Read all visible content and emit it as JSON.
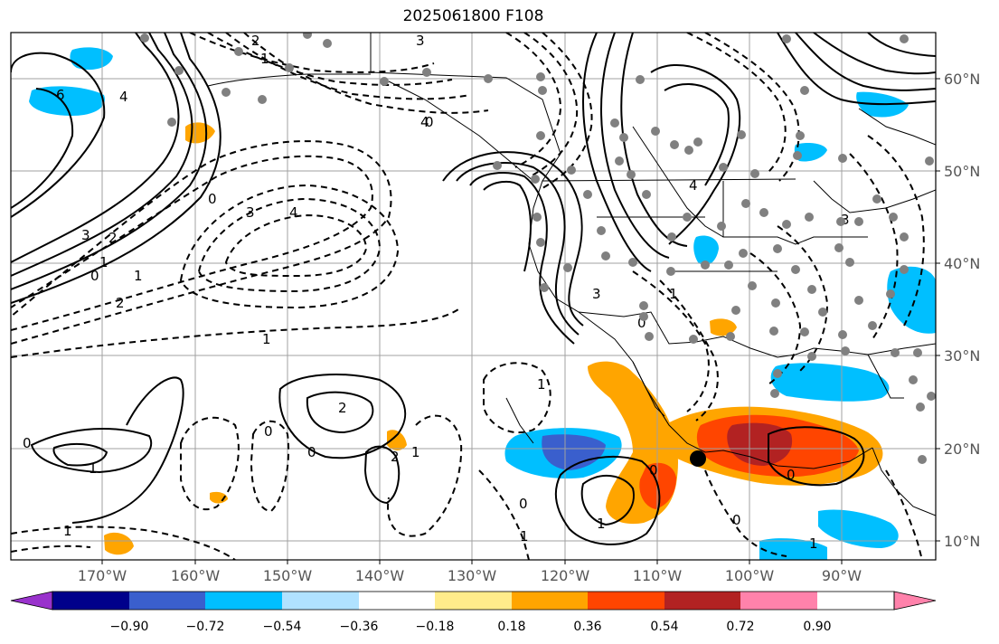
{
  "title": "2025061800 F108",
  "lat_labels": [
    "60°N",
    "50°N",
    "40°N",
    "30°N",
    "20°N",
    "10°N"
  ],
  "lon_labels": [
    "170°W",
    "160°W",
    "150°W",
    "140°W",
    "130°W",
    "120°W",
    "110°W",
    "100°W",
    "90°W"
  ],
  "colorbar": {
    "ticks": [
      "−0.90",
      "−0.72",
      "−0.54",
      "−0.36",
      "−0.18",
      "0.18",
      "0.36",
      "0.54",
      "0.72",
      "0.90"
    ],
    "colors": [
      "#9932cc",
      "#00008b",
      "#3a5fcd",
      "#00bfff",
      "#b0e2ff",
      "#ffffff",
      "#ffec8b",
      "#ffa500",
      "#ff4500",
      "#b22222",
      "#ff82ab"
    ]
  },
  "contour_labels": [
    "6",
    "4",
    "3",
    "2",
    "1",
    "0",
    "1",
    "2",
    "3",
    "4",
    "2",
    "1",
    "0",
    "1",
    "2",
    "1",
    "0",
    "3",
    "4",
    "0",
    "2",
    "1",
    "0",
    "1",
    "0",
    "3",
    "1",
    "0",
    "1",
    "0",
    "1",
    "0",
    "4",
    "3",
    "0",
    "1",
    "0",
    "1"
  ],
  "marker": "center-dot"
}
